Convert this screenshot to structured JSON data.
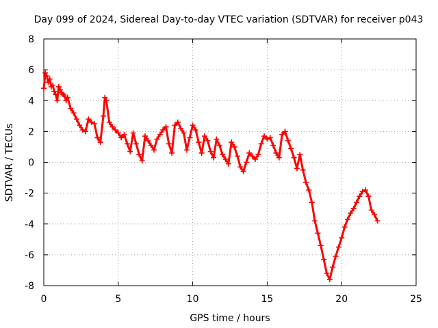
{
  "chart_data": {
    "type": "scatter",
    "title": "Day 099 of 2024, Sidereal Day-to-day VTEC variation (SDTVAR) for receiver p043",
    "xlabel": "GPS time / hours",
    "ylabel": "SDTVAR / TECUs",
    "xlim": [
      0,
      25
    ],
    "ylim": [
      -8,
      8
    ],
    "xticks": [
      0,
      5,
      10,
      15,
      20,
      25
    ],
    "yticks": [
      -8,
      -6,
      -4,
      -2,
      0,
      2,
      4,
      6,
      8
    ],
    "grid": true,
    "marker": "+",
    "marker_color": "#ff0000",
    "series": [
      {
        "name": "SDTVAR",
        "color": "#ff0000",
        "x": [
          0.0,
          0.1,
          0.2,
          0.3,
          0.4,
          0.5,
          0.6,
          0.7,
          0.8,
          0.9,
          1.0,
          1.1,
          1.2,
          1.3,
          1.4,
          1.5,
          1.6,
          1.8,
          2.0,
          2.2,
          2.4,
          2.6,
          2.8,
          3.0,
          3.2,
          3.4,
          3.6,
          3.8,
          4.0,
          4.1,
          4.2,
          4.4,
          4.6,
          4.8,
          5.0,
          5.2,
          5.4,
          5.6,
          5.8,
          6.0,
          6.2,
          6.4,
          6.6,
          6.8,
          7.0,
          7.2,
          7.4,
          7.6,
          7.8,
          8.0,
          8.2,
          8.4,
          8.6,
          8.8,
          9.0,
          9.2,
          9.4,
          9.6,
          9.8,
          10.0,
          10.2,
          10.4,
          10.6,
          10.8,
          11.0,
          11.2,
          11.4,
          11.6,
          11.8,
          12.0,
          12.2,
          12.4,
          12.6,
          12.8,
          13.0,
          13.2,
          13.4,
          13.6,
          13.8,
          14.0,
          14.2,
          14.4,
          14.6,
          14.8,
          15.0,
          15.2,
          15.4,
          15.6,
          15.8,
          16.0,
          16.2,
          16.4,
          16.6,
          16.8,
          17.0,
          17.2,
          17.4,
          17.6,
          17.8,
          18.0,
          18.2,
          18.4,
          18.6,
          18.8,
          19.0,
          19.2,
          19.4,
          19.6,
          19.8,
          20.0,
          20.2,
          20.4,
          20.6,
          20.8,
          21.0,
          21.2,
          21.4,
          21.6,
          21.8,
          22.0,
          22.2,
          22.4
        ],
        "values": [
          4.8,
          5.8,
          5.6,
          5.2,
          5.4,
          4.9,
          5.0,
          4.6,
          4.4,
          4.0,
          4.9,
          4.7,
          4.5,
          4.4,
          4.3,
          4.0,
          4.2,
          3.5,
          3.2,
          2.8,
          2.4,
          2.1,
          2.0,
          2.8,
          2.6,
          2.5,
          1.6,
          1.3,
          3.0,
          4.2,
          4.0,
          2.6,
          2.3,
          2.1,
          1.9,
          1.6,
          1.8,
          1.2,
          0.7,
          1.9,
          1.2,
          0.5,
          0.1,
          1.7,
          1.4,
          1.1,
          0.8,
          1.5,
          1.8,
          2.1,
          2.3,
          1.2,
          0.6,
          2.4,
          2.6,
          2.2,
          1.9,
          0.8,
          1.6,
          2.4,
          2.1,
          1.3,
          0.6,
          1.7,
          1.4,
          0.7,
          0.3,
          1.5,
          1.1,
          0.5,
          0.2,
          -0.1,
          1.3,
          1.0,
          0.4,
          -0.3,
          -0.6,
          0.0,
          0.6,
          0.4,
          0.2,
          0.5,
          1.2,
          1.7,
          1.5,
          1.6,
          1.1,
          0.6,
          0.3,
          1.8,
          2.0,
          1.4,
          0.9,
          0.3,
          -0.4,
          0.5,
          -0.5,
          -1.3,
          -1.8,
          -2.6,
          -3.8,
          -4.6,
          -5.4,
          -6.3,
          -7.2,
          -7.6,
          -6.8,
          -6.1,
          -5.5,
          -4.9,
          -4.2,
          -3.7,
          -3.3,
          -3.0,
          -2.6,
          -2.2,
          -1.9,
          -1.8,
          -2.2,
          -3.1,
          -3.4,
          -3.8
        ]
      }
    ]
  }
}
